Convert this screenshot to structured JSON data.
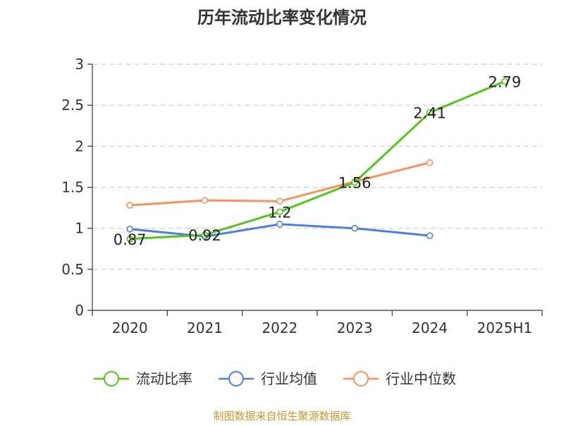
{
  "chart_data": {
    "type": "line",
    "title": "历年流动比率变化情况",
    "categories": [
      "2020",
      "2021",
      "2022",
      "2023",
      "2024",
      "2025H1"
    ],
    "ylim": [
      0,
      3
    ],
    "yticks": [
      "0",
      "0.5",
      "1",
      "1.5",
      "2",
      "2.5",
      "3"
    ],
    "grid": true,
    "legend_position": "bottom",
    "series": [
      {
        "name": "流动比率",
        "color": "#52c41a",
        "values": [
          0.87,
          0.92,
          1.2,
          1.56,
          2.41,
          2.79
        ],
        "labels": [
          "0.87",
          "0.92",
          "1.2",
          "1.56",
          "2.41",
          "2.79"
        ]
      },
      {
        "name": "行业均值",
        "color": "#4e7fe0",
        "values": [
          0.99,
          0.9,
          1.05,
          1.0,
          0.91,
          null
        ]
      },
      {
        "name": "行业中位数",
        "color": "#f5925e",
        "values": [
          1.28,
          1.34,
          1.33,
          1.57,
          1.8,
          null
        ]
      }
    ],
    "source": "制图数据来自恒生聚源数据库",
    "source_color": "#c8962e"
  }
}
